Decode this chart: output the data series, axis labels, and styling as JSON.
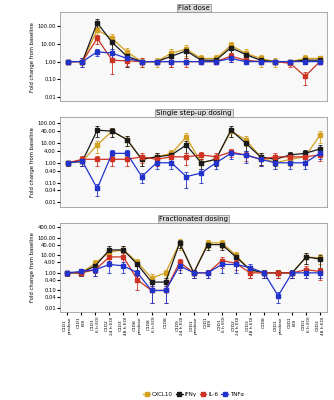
{
  "panel_titles": [
    "Flat dose",
    "Single step-up dosing",
    "Fractionated dosing"
  ],
  "colors": {
    "CXCL10": "#D4A020",
    "IFNy": "#1A1A1A",
    "IL-6": "#CC3322",
    "TNFa": "#2233CC"
  },
  "panel1": {
    "CXCL10": [
      1.0,
      1.0,
      60.0,
      20.0,
      3.5,
      1.0,
      1.0,
      3.0,
      5.0,
      1.5,
      1.5,
      8.0,
      3.0,
      1.5,
      1.0,
      1.0,
      1.5,
      1.5
    ],
    "IFNy": [
      1.0,
      1.0,
      150.0,
      12.0,
      2.0,
      1.0,
      1.0,
      2.0,
      4.0,
      1.2,
      1.2,
      6.0,
      2.5,
      1.2,
      1.0,
      1.0,
      1.2,
      1.2
    ],
    "IL-6": [
      1.0,
      1.0,
      20.0,
      1.2,
      1.1,
      1.0,
      1.0,
      1.0,
      1.0,
      1.0,
      1.0,
      2.0,
      1.2,
      1.0,
      1.0,
      0.8,
      0.15,
      1.0
    ],
    "TNFa": [
      1.0,
      1.0,
      3.5,
      3.0,
      1.5,
      1.0,
      1.0,
      1.0,
      1.0,
      1.0,
      1.0,
      1.5,
      1.0,
      1.0,
      1.0,
      1.0,
      1.0,
      1.0
    ],
    "CXCL10_err": [
      0.3,
      0.2,
      30.0,
      15.0,
      2.0,
      0.5,
      0.5,
      2.0,
      3.0,
      0.8,
      0.8,
      5.0,
      2.0,
      1.0,
      0.5,
      0.3,
      0.8,
      0.5
    ],
    "IFNy_err": [
      0.3,
      0.2,
      80.0,
      8.0,
      1.5,
      0.3,
      0.3,
      1.5,
      2.5,
      0.4,
      0.4,
      4.0,
      1.5,
      0.5,
      0.3,
      0.3,
      0.5,
      0.3
    ],
    "IL-6_err": [
      0.3,
      0.5,
      10.0,
      1.0,
      0.5,
      0.5,
      0.3,
      0.5,
      0.5,
      0.3,
      0.3,
      1.0,
      0.5,
      0.3,
      0.3,
      0.3,
      0.1,
      0.3
    ],
    "TNFa_err": [
      0.3,
      0.5,
      1.5,
      2.0,
      0.5,
      0.3,
      0.3,
      0.3,
      0.3,
      0.2,
      0.2,
      0.5,
      0.3,
      0.2,
      0.2,
      0.2,
      0.2,
      0.2
    ]
  },
  "panel2": {
    "CXCL10": [
      1.0,
      1.2,
      8.0,
      40.0,
      15.0,
      1.5,
      2.0,
      3.0,
      20.0,
      1.0,
      1.5,
      40.0,
      15.0,
      2.0,
      1.0,
      1.5,
      2.0,
      25.0
    ],
    "IFNy": [
      1.0,
      1.2,
      45.0,
      40.0,
      15.0,
      1.5,
      2.0,
      2.5,
      8.0,
      1.0,
      1.5,
      45.0,
      10.0,
      2.0,
      1.5,
      2.5,
      3.0,
      5.0
    ],
    "IL-6": [
      1.0,
      1.5,
      1.5,
      1.5,
      1.5,
      2.0,
      1.5,
      2.0,
      2.0,
      2.5,
      2.0,
      3.5,
      2.5,
      1.5,
      2.0,
      2.0,
      2.0,
      2.5
    ],
    "TNFa": [
      1.0,
      1.2,
      0.05,
      3.0,
      3.0,
      0.2,
      1.0,
      1.0,
      0.2,
      0.3,
      1.0,
      3.0,
      2.5,
      1.5,
      1.0,
      1.0,
      1.0,
      3.0
    ],
    "CXCL10_err": [
      0.3,
      0.5,
      5.0,
      20.0,
      8.0,
      0.8,
      1.0,
      1.5,
      12.0,
      0.5,
      0.8,
      20.0,
      8.0,
      1.2,
      0.5,
      0.8,
      1.0,
      15.0
    ],
    "IFNy_err": [
      0.3,
      0.5,
      25.0,
      20.0,
      8.0,
      0.8,
      1.0,
      1.5,
      5.0,
      0.5,
      0.8,
      25.0,
      6.0,
      1.2,
      0.8,
      1.2,
      1.5,
      3.0
    ],
    "IL-6_err": [
      0.3,
      0.8,
      0.8,
      0.8,
      0.8,
      1.0,
      0.8,
      1.0,
      1.2,
      1.0,
      1.0,
      1.5,
      1.2,
      0.8,
      1.0,
      1.0,
      1.0,
      1.2
    ],
    "TNFa_err": [
      0.3,
      0.5,
      0.03,
      1.5,
      1.5,
      0.1,
      0.5,
      0.5,
      0.15,
      0.2,
      0.5,
      1.5,
      1.5,
      0.8,
      0.5,
      0.5,
      0.5,
      1.5
    ]
  },
  "panel3": {
    "CXCL10": [
      1.0,
      1.0,
      3.5,
      15.0,
      20.0,
      4.0,
      0.5,
      1.0,
      50.0,
      1.0,
      50.0,
      50.0,
      10.0,
      1.5,
      1.0,
      1.0,
      1.0,
      8.0,
      7.0
    ],
    "IFNy": [
      1.0,
      1.0,
      2.5,
      20.0,
      20.0,
      3.0,
      0.3,
      0.3,
      50.0,
      1.0,
      40.0,
      40.0,
      8.0,
      1.5,
      1.0,
      1.0,
      1.0,
      8.0,
      6.0
    ],
    "IL-6": [
      1.0,
      1.0,
      1.5,
      8.0,
      8.0,
      0.4,
      0.1,
      0.1,
      4.0,
      1.0,
      1.0,
      5.0,
      3.5,
      1.0,
      1.0,
      1.0,
      1.0,
      1.5,
      1.2
    ],
    "TNFa": [
      1.0,
      1.2,
      1.5,
      3.0,
      2.5,
      1.0,
      0.1,
      0.1,
      2.5,
      1.0,
      1.0,
      3.0,
      3.0,
      2.0,
      1.0,
      0.05,
      1.0,
      1.0,
      1.0
    ],
    "CXCL10_err": [
      0.3,
      0.3,
      2.0,
      10.0,
      12.0,
      2.5,
      0.4,
      0.5,
      30.0,
      0.5,
      25.0,
      25.0,
      6.0,
      1.0,
      0.5,
      0.5,
      0.5,
      5.0,
      4.0
    ],
    "IFNy_err": [
      0.3,
      0.3,
      1.5,
      12.0,
      12.0,
      2.0,
      0.2,
      0.2,
      25.0,
      0.5,
      20.0,
      20.0,
      5.0,
      1.0,
      0.5,
      0.5,
      0.5,
      5.0,
      4.0
    ],
    "IL-6_err": [
      0.3,
      0.3,
      0.8,
      5.0,
      5.0,
      0.3,
      0.08,
      0.08,
      2.5,
      0.5,
      0.5,
      3.0,
      2.0,
      0.5,
      0.5,
      0.5,
      0.5,
      1.0,
      0.8
    ],
    "TNFa_err": [
      0.3,
      0.5,
      0.8,
      2.0,
      1.5,
      0.5,
      0.08,
      0.08,
      1.5,
      0.5,
      0.5,
      2.0,
      2.0,
      1.2,
      0.5,
      0.03,
      0.5,
      0.5,
      0.5
    ]
  },
  "xlabels_all": [
    "C1D1\npredose",
    "C1D1\nEOI",
    "C1D1\n6 h EOI",
    "C1D2\n24 h EOI",
    "C1D3\n48 h EOI",
    "C1D8\npredose",
    "C1D8\n6 h EOI",
    "C1D8",
    "C1D9\n24 h EOI",
    "C2D1\npredose",
    "C2D1\nEOI",
    "C2D1\n6 h EOI",
    "C2D2\n24 h EOI",
    "C2D3\n48 h EOI",
    "C2D8",
    "C3D1\npredose",
    "C3D1\nEOI",
    "C3D1\n6 h EOI",
    "C3D3\n48 h EOI"
  ],
  "ylim1": [
    0.006,
    600
  ],
  "ylim2": [
    0.006,
    200
  ],
  "ylim3": [
    0.006,
    700
  ],
  "yticks1": [
    0.01,
    0.1,
    1.0,
    10.0,
    100.0
  ],
  "ytlabels1": [
    "0.01",
    "0.10",
    "1.00",
    "10.00",
    "100.00"
  ],
  "yticks2": [
    0.01,
    0.04,
    0.1,
    0.4,
    1.0,
    4.0,
    10.0,
    40.0,
    100.0
  ],
  "ytlabels2": [
    "0.01",
    "0.04",
    "0.10",
    "0.40",
    "1.00",
    "4.00",
    "10.00",
    "40.00",
    "100.00"
  ],
  "yticks3": [
    0.01,
    0.04,
    0.1,
    0.4,
    1.0,
    4.0,
    10.0,
    40.0,
    100.0,
    400.0
  ],
  "ytlabels3": [
    "0.01",
    "0.04",
    "0.10",
    "0.40",
    "1.00",
    "4.00",
    "10.00",
    "40.00",
    "100.00",
    "400.00"
  ],
  "legend_labels": [
    "CXCL10",
    "IFNγ",
    "IL-6",
    "TNFα"
  ],
  "legend_colors": [
    "#D4A020",
    "#1A1A1A",
    "#CC3322",
    "#2233CC"
  ],
  "ylabel": "Fold change from baseline",
  "bg_color": "#FFFFFF",
  "panel_bg": "#F8F8F8"
}
